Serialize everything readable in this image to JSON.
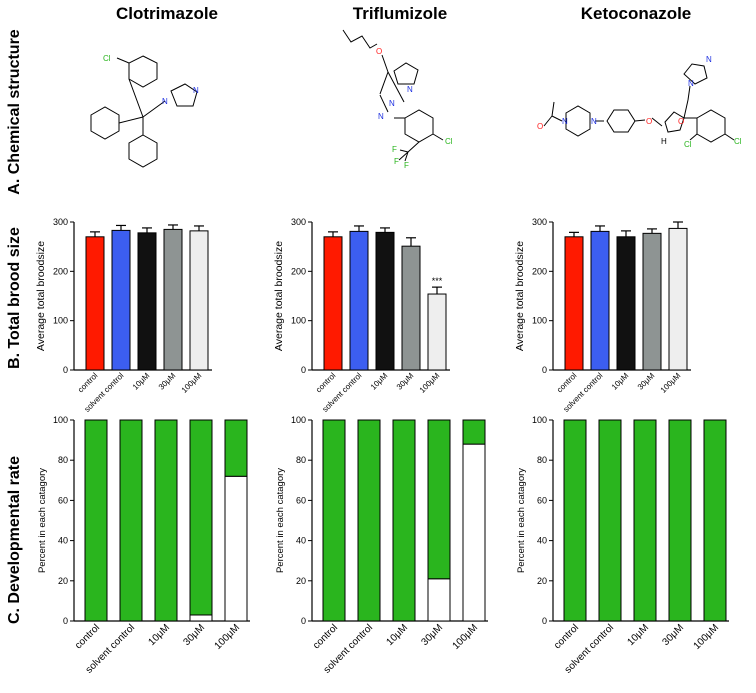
{
  "titles": [
    "Clotrimazole",
    "Triflumizole",
    "Ketoconazole"
  ],
  "row_labels": {
    "a": "A. Chemical structure",
    "b": "B. Total brood size",
    "c": "C. Developmental rate"
  },
  "structure_atoms": {
    "clotrimazole": [
      "Cl",
      "N",
      "N"
    ],
    "triflumizole": [
      "O",
      "N",
      "N",
      "N",
      "F",
      "F",
      "F",
      "Cl"
    ],
    "ketoconazole": [
      "O",
      "N",
      "N",
      "N",
      "N",
      "O",
      "O",
      "H",
      "Cl",
      "Cl"
    ]
  },
  "colors": {
    "control": "#ff1a00",
    "solvent": "#3c5ef0",
    "c10": "#111111",
    "c30": "#8e9493",
    "c100": "#eeeeee",
    "green": "#2ab51e"
  },
  "chart_data": [
    {
      "type": "bar",
      "compound": "Clotrimazole",
      "ylabel": "Average total broodsize",
      "ylim": [
        0,
        300
      ],
      "yticks": [
        0,
        100,
        200,
        300
      ],
      "categories": [
        "control",
        "solvent control",
        "10μM",
        "30μM",
        "100μM"
      ],
      "values": [
        270,
        283,
        278,
        285,
        282
      ],
      "errors": [
        10,
        10,
        10,
        9,
        10
      ],
      "annotations": [
        "",
        "",
        "",
        "",
        ""
      ]
    },
    {
      "type": "bar",
      "compound": "Triflumizole",
      "ylabel": "Average total broodsize",
      "ylim": [
        0,
        300
      ],
      "yticks": [
        0,
        100,
        200,
        300
      ],
      "categories": [
        "control",
        "solvent control",
        "10μM",
        "30μM",
        "100μM"
      ],
      "values": [
        270,
        281,
        279,
        251,
        154
      ],
      "errors": [
        10,
        11,
        9,
        17,
        14
      ],
      "annotations": [
        "",
        "",
        "",
        "",
        "***"
      ]
    },
    {
      "type": "bar",
      "compound": "Ketoconazole",
      "ylabel": "Average total broodsize",
      "ylim": [
        0,
        300
      ],
      "yticks": [
        0,
        100,
        200,
        300
      ],
      "categories": [
        "control",
        "solvent control",
        "10μM",
        "30μM",
        "100μM"
      ],
      "values": [
        270,
        281,
        270,
        277,
        287
      ],
      "errors": [
        9,
        11,
        12,
        9,
        13
      ],
      "annotations": [
        "",
        "",
        "",
        "",
        ""
      ]
    },
    {
      "type": "stacked-bar",
      "compound": "Clotrimazole",
      "ylabel": "Percent in each catagory",
      "ylim": [
        0,
        100
      ],
      "yticks": [
        0,
        20,
        40,
        60,
        80,
        100
      ],
      "categories": [
        "control",
        "solvent control",
        "10μM",
        "30μM",
        "100μM"
      ],
      "series": [
        {
          "name": "lower (white)",
          "color": "#ffffff",
          "values": [
            0,
            0,
            0,
            3,
            72
          ]
        },
        {
          "name": "upper (green)",
          "color": "#2ab51e",
          "values": [
            100,
            100,
            100,
            97,
            28
          ]
        }
      ]
    },
    {
      "type": "stacked-bar",
      "compound": "Triflumizole",
      "ylabel": "Percent in each catagory",
      "ylim": [
        0,
        100
      ],
      "yticks": [
        0,
        20,
        40,
        60,
        80,
        100
      ],
      "categories": [
        "control",
        "solvent control",
        "10μM",
        "30μM",
        "100μM"
      ],
      "series": [
        {
          "name": "lower (white)",
          "color": "#ffffff",
          "values": [
            0,
            0,
            0,
            21,
            88
          ]
        },
        {
          "name": "upper (green)",
          "color": "#2ab51e",
          "values": [
            100,
            100,
            100,
            79,
            12
          ]
        }
      ]
    },
    {
      "type": "stacked-bar",
      "compound": "Ketoconazole",
      "ylabel": "Percent in each catagory",
      "ylim": [
        0,
        100
      ],
      "yticks": [
        0,
        20,
        40,
        60,
        80,
        100
      ],
      "categories": [
        "control",
        "solvent control",
        "10μM",
        "30μM",
        "100μM"
      ],
      "series": [
        {
          "name": "lower (white)",
          "color": "#ffffff",
          "values": [
            0,
            0,
            0,
            0,
            0
          ]
        },
        {
          "name": "upper (green)",
          "color": "#2ab51e",
          "values": [
            100,
            100,
            100,
            100,
            100
          ]
        }
      ]
    }
  ]
}
